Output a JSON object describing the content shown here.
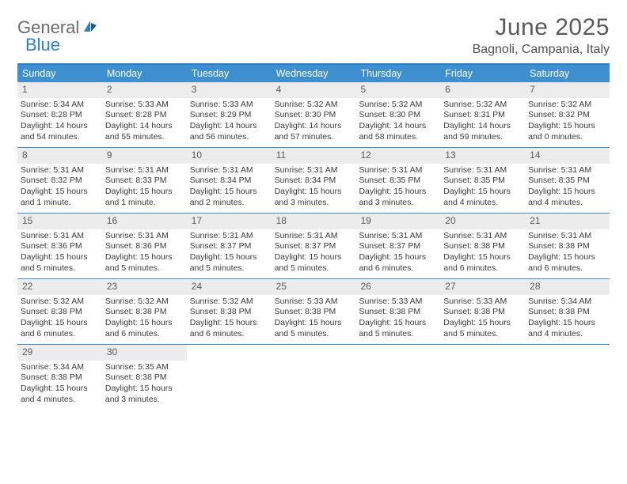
{
  "logo": {
    "word1": "General",
    "word2": "Blue"
  },
  "title": "June 2025",
  "location": "Bagnoli, Campania, Italy",
  "colors": {
    "header_bg": "#3e8fcf",
    "border": "#2f7fc2",
    "daynum_bg": "#ececec",
    "text": "#3a3a3a"
  },
  "dow": [
    "Sunday",
    "Monday",
    "Tuesday",
    "Wednesday",
    "Thursday",
    "Friday",
    "Saturday"
  ],
  "weeks": [
    [
      {
        "n": "1",
        "sr": "Sunrise: 5:34 AM",
        "ss": "Sunset: 8:28 PM",
        "d1": "Daylight: 14 hours",
        "d2": "and 54 minutes."
      },
      {
        "n": "2",
        "sr": "Sunrise: 5:33 AM",
        "ss": "Sunset: 8:28 PM",
        "d1": "Daylight: 14 hours",
        "d2": "and 55 minutes."
      },
      {
        "n": "3",
        "sr": "Sunrise: 5:33 AM",
        "ss": "Sunset: 8:29 PM",
        "d1": "Daylight: 14 hours",
        "d2": "and 56 minutes."
      },
      {
        "n": "4",
        "sr": "Sunrise: 5:32 AM",
        "ss": "Sunset: 8:30 PM",
        "d1": "Daylight: 14 hours",
        "d2": "and 57 minutes."
      },
      {
        "n": "5",
        "sr": "Sunrise: 5:32 AM",
        "ss": "Sunset: 8:30 PM",
        "d1": "Daylight: 14 hours",
        "d2": "and 58 minutes."
      },
      {
        "n": "6",
        "sr": "Sunrise: 5:32 AM",
        "ss": "Sunset: 8:31 PM",
        "d1": "Daylight: 14 hours",
        "d2": "and 59 minutes."
      },
      {
        "n": "7",
        "sr": "Sunrise: 5:32 AM",
        "ss": "Sunset: 8:32 PM",
        "d1": "Daylight: 15 hours",
        "d2": "and 0 minutes."
      }
    ],
    [
      {
        "n": "8",
        "sr": "Sunrise: 5:31 AM",
        "ss": "Sunset: 8:32 PM",
        "d1": "Daylight: 15 hours",
        "d2": "and 1 minute."
      },
      {
        "n": "9",
        "sr": "Sunrise: 5:31 AM",
        "ss": "Sunset: 8:33 PM",
        "d1": "Daylight: 15 hours",
        "d2": "and 1 minute."
      },
      {
        "n": "10",
        "sr": "Sunrise: 5:31 AM",
        "ss": "Sunset: 8:34 PM",
        "d1": "Daylight: 15 hours",
        "d2": "and 2 minutes."
      },
      {
        "n": "11",
        "sr": "Sunrise: 5:31 AM",
        "ss": "Sunset: 8:34 PM",
        "d1": "Daylight: 15 hours",
        "d2": "and 3 minutes."
      },
      {
        "n": "12",
        "sr": "Sunrise: 5:31 AM",
        "ss": "Sunset: 8:35 PM",
        "d1": "Daylight: 15 hours",
        "d2": "and 3 minutes."
      },
      {
        "n": "13",
        "sr": "Sunrise: 5:31 AM",
        "ss": "Sunset: 8:35 PM",
        "d1": "Daylight: 15 hours",
        "d2": "and 4 minutes."
      },
      {
        "n": "14",
        "sr": "Sunrise: 5:31 AM",
        "ss": "Sunset: 8:35 PM",
        "d1": "Daylight: 15 hours",
        "d2": "and 4 minutes."
      }
    ],
    [
      {
        "n": "15",
        "sr": "Sunrise: 5:31 AM",
        "ss": "Sunset: 8:36 PM",
        "d1": "Daylight: 15 hours",
        "d2": "and 5 minutes."
      },
      {
        "n": "16",
        "sr": "Sunrise: 5:31 AM",
        "ss": "Sunset: 8:36 PM",
        "d1": "Daylight: 15 hours",
        "d2": "and 5 minutes."
      },
      {
        "n": "17",
        "sr": "Sunrise: 5:31 AM",
        "ss": "Sunset: 8:37 PM",
        "d1": "Daylight: 15 hours",
        "d2": "and 5 minutes."
      },
      {
        "n": "18",
        "sr": "Sunrise: 5:31 AM",
        "ss": "Sunset: 8:37 PM",
        "d1": "Daylight: 15 hours",
        "d2": "and 5 minutes."
      },
      {
        "n": "19",
        "sr": "Sunrise: 5:31 AM",
        "ss": "Sunset: 8:37 PM",
        "d1": "Daylight: 15 hours",
        "d2": "and 6 minutes."
      },
      {
        "n": "20",
        "sr": "Sunrise: 5:31 AM",
        "ss": "Sunset: 8:38 PM",
        "d1": "Daylight: 15 hours",
        "d2": "and 6 minutes."
      },
      {
        "n": "21",
        "sr": "Sunrise: 5:31 AM",
        "ss": "Sunset: 8:38 PM",
        "d1": "Daylight: 15 hours",
        "d2": "and 6 minutes."
      }
    ],
    [
      {
        "n": "22",
        "sr": "Sunrise: 5:32 AM",
        "ss": "Sunset: 8:38 PM",
        "d1": "Daylight: 15 hours",
        "d2": "and 6 minutes."
      },
      {
        "n": "23",
        "sr": "Sunrise: 5:32 AM",
        "ss": "Sunset: 8:38 PM",
        "d1": "Daylight: 15 hours",
        "d2": "and 6 minutes."
      },
      {
        "n": "24",
        "sr": "Sunrise: 5:32 AM",
        "ss": "Sunset: 8:38 PM",
        "d1": "Daylight: 15 hours",
        "d2": "and 6 minutes."
      },
      {
        "n": "25",
        "sr": "Sunrise: 5:33 AM",
        "ss": "Sunset: 8:38 PM",
        "d1": "Daylight: 15 hours",
        "d2": "and 5 minutes."
      },
      {
        "n": "26",
        "sr": "Sunrise: 5:33 AM",
        "ss": "Sunset: 8:38 PM",
        "d1": "Daylight: 15 hours",
        "d2": "and 5 minutes."
      },
      {
        "n": "27",
        "sr": "Sunrise: 5:33 AM",
        "ss": "Sunset: 8:38 PM",
        "d1": "Daylight: 15 hours",
        "d2": "and 5 minutes."
      },
      {
        "n": "28",
        "sr": "Sunrise: 5:34 AM",
        "ss": "Sunset: 8:38 PM",
        "d1": "Daylight: 15 hours",
        "d2": "and 4 minutes."
      }
    ],
    [
      {
        "n": "29",
        "sr": "Sunrise: 5:34 AM",
        "ss": "Sunset: 8:38 PM",
        "d1": "Daylight: 15 hours",
        "d2": "and 4 minutes."
      },
      {
        "n": "30",
        "sr": "Sunrise: 5:35 AM",
        "ss": "Sunset: 8:38 PM",
        "d1": "Daylight: 15 hours",
        "d2": "and 3 minutes."
      },
      null,
      null,
      null,
      null,
      null
    ]
  ]
}
